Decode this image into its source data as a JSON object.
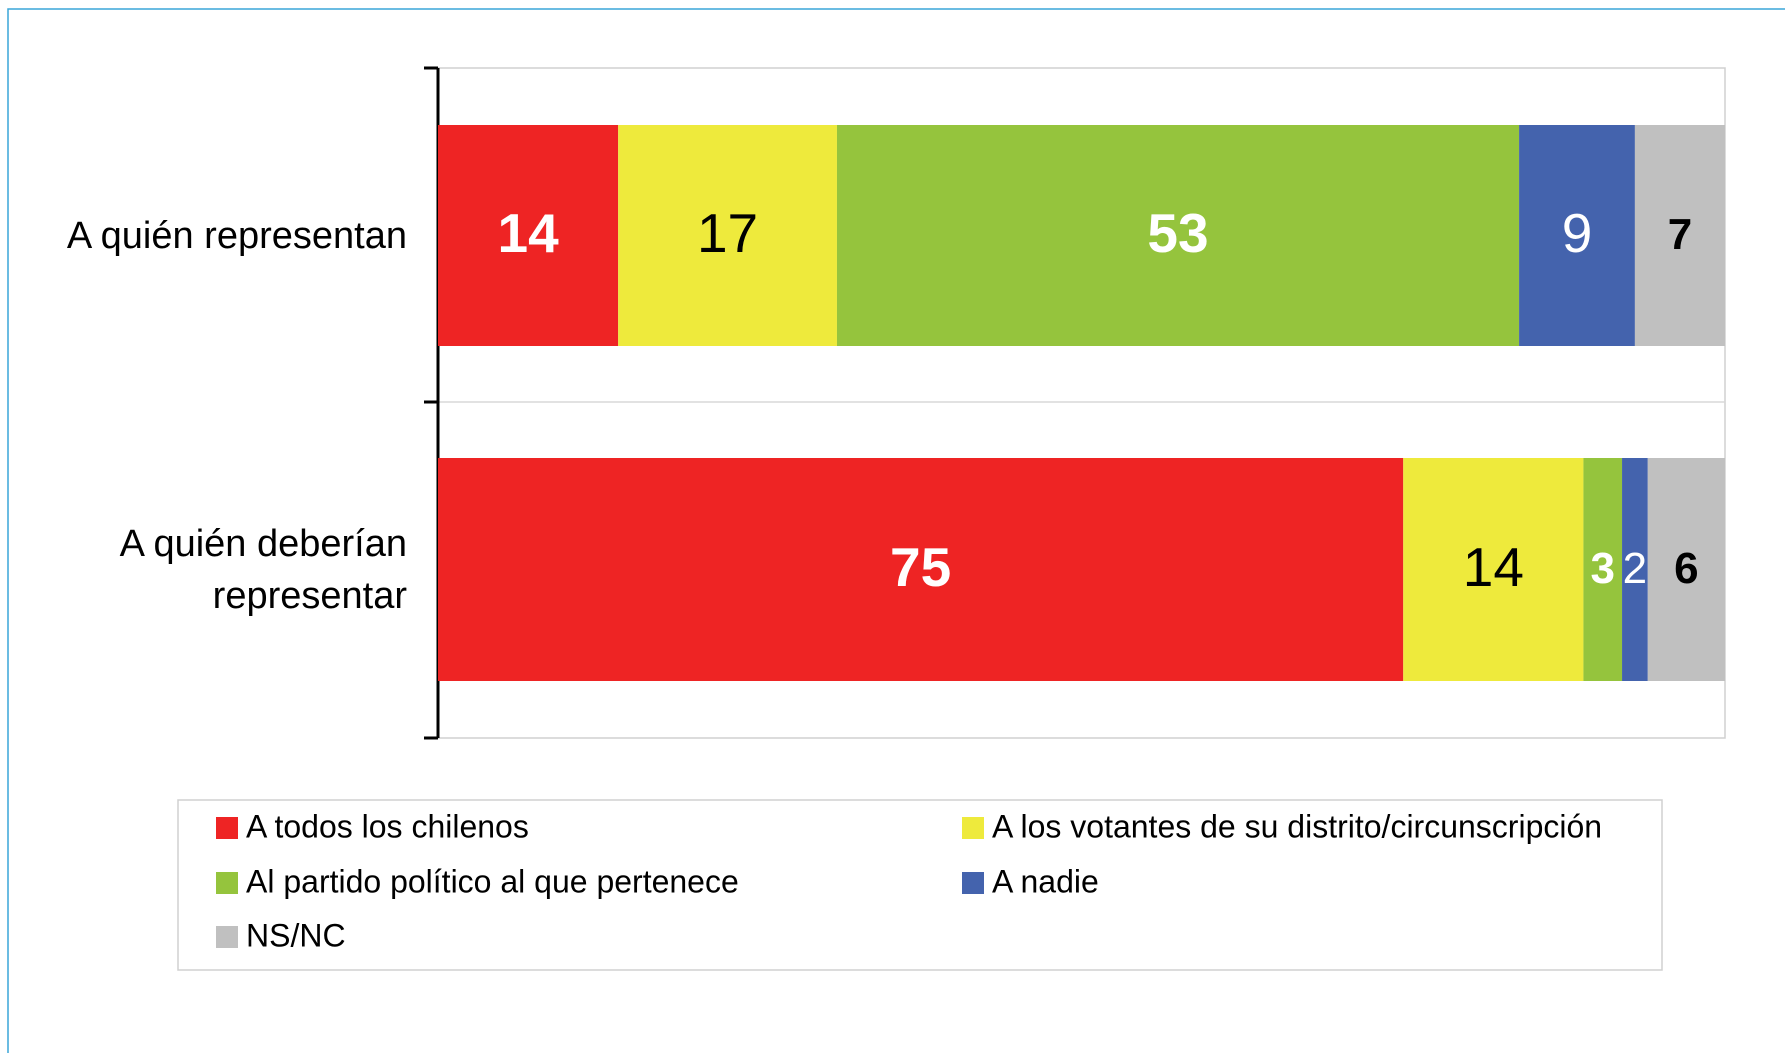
{
  "chart_data": {
    "type": "stacked-bar-horizontal",
    "categories": [
      "A quién representan",
      "A quién deberían representar"
    ],
    "series": [
      {
        "name": "A todos los chilenos",
        "color": "#ee2424",
        "values": [
          14,
          75
        ]
      },
      {
        "name": "A los votantes de su distrito/circunscripción",
        "color": "#eeea3c",
        "values": [
          17,
          14
        ]
      },
      {
        "name": "Al partido político al que pertenece",
        "color": "#95c43d",
        "values": [
          53,
          3
        ]
      },
      {
        "name": "A nadie",
        "color": "#4463ad",
        "values": [
          9,
          2
        ]
      },
      {
        "name": "NS/NC",
        "color": "#c0c0c0",
        "values": [
          7,
          6
        ]
      }
    ],
    "xlim": [
      0,
      100
    ]
  }
}
